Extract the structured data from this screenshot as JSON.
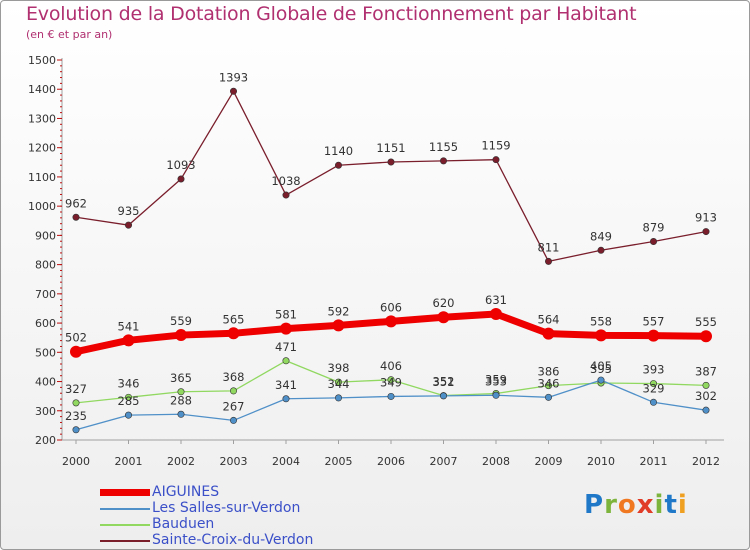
{
  "header": {
    "title": "Evolution de la Dotation Globale de Fonctionnement par Habitant",
    "subtitle": "(en € et par an)"
  },
  "logo": {
    "text": "Proxiti",
    "letters": [
      "P",
      "r",
      "o",
      "x",
      "i",
      "t",
      "i"
    ],
    "colors": [
      "#1f78c8",
      "#7db43c",
      "#f07820",
      "#e03c28",
      "#7db43c",
      "#1f78c8",
      "#f0a020"
    ]
  },
  "chart_data": {
    "type": "line",
    "title": "Evolution de la Dotation Globale de Fonctionnement par Habitant",
    "subtitle": "(en € et par an)",
    "xlabel": "",
    "ylabel": "",
    "ylim": [
      200,
      1500
    ],
    "ytick_step": 100,
    "grid": false,
    "legend_position": "bottom-left",
    "categories": [
      "2000",
      "2001",
      "2002",
      "2003",
      "2004",
      "2005",
      "2006",
      "2007",
      "2008",
      "2009",
      "2010",
      "2011",
      "2012"
    ],
    "yticks": [
      "200",
      "300",
      "400",
      "500",
      "600",
      "700",
      "800",
      "900",
      "1000",
      "1100",
      "1200",
      "1300",
      "1400",
      "1500"
    ],
    "series": [
      {
        "name": "Sainte-Croix-du-Verdon",
        "color": "#7a1e2c",
        "values": [
          962,
          935,
          1093,
          1393,
          1038,
          1140,
          1151,
          1155,
          1159,
          811,
          849,
          879,
          913
        ],
        "labels": [
          "962",
          "935",
          "1093",
          "1393",
          "1038",
          "1140",
          "1151",
          "1155",
          "1159",
          "811",
          "849",
          "879",
          "913"
        ]
      },
      {
        "name": "Bauduen",
        "color": "#90d860",
        "values": [
          327,
          346,
          365,
          368,
          471,
          398,
          406,
          352,
          359,
          386,
          395,
          393,
          387
        ],
        "labels": [
          "327",
          "346",
          "365",
          "368",
          "471",
          "398",
          "406",
          "352",
          "359",
          "386",
          "395",
          "393",
          "387"
        ]
      },
      {
        "name": "Les Salles-sur-Verdon",
        "color": "#5090c8",
        "values": [
          235,
          285,
          288,
          267,
          341,
          344,
          349,
          351,
          353,
          346,
          405,
          329,
          302
        ],
        "labels": [
          "235",
          "285",
          "288",
          "267",
          "341",
          "344",
          "349",
          "351",
          "353",
          "346",
          "405",
          "329",
          "302"
        ]
      },
      {
        "name": "AIGUINES",
        "color": "#ee0000",
        "values": [
          502,
          541,
          559,
          565,
          581,
          592,
          606,
          620,
          631,
          564,
          558,
          557,
          555
        ],
        "labels": [
          "502",
          "541",
          "559",
          "565",
          "581",
          "592",
          "606",
          "620",
          "631",
          "564",
          "558",
          "557",
          "555"
        ]
      }
    ],
    "legend": [
      {
        "name": "AIGUINES",
        "color": "#ee0000",
        "thick": true
      },
      {
        "name": "Les Salles-sur-Verdon",
        "color": "#5090c8",
        "thick": false
      },
      {
        "name": "Bauduen",
        "color": "#90d860",
        "thick": false
      },
      {
        "name": "Sainte-Croix-du-Verdon",
        "color": "#7a1e2c",
        "thick": false
      }
    ]
  }
}
